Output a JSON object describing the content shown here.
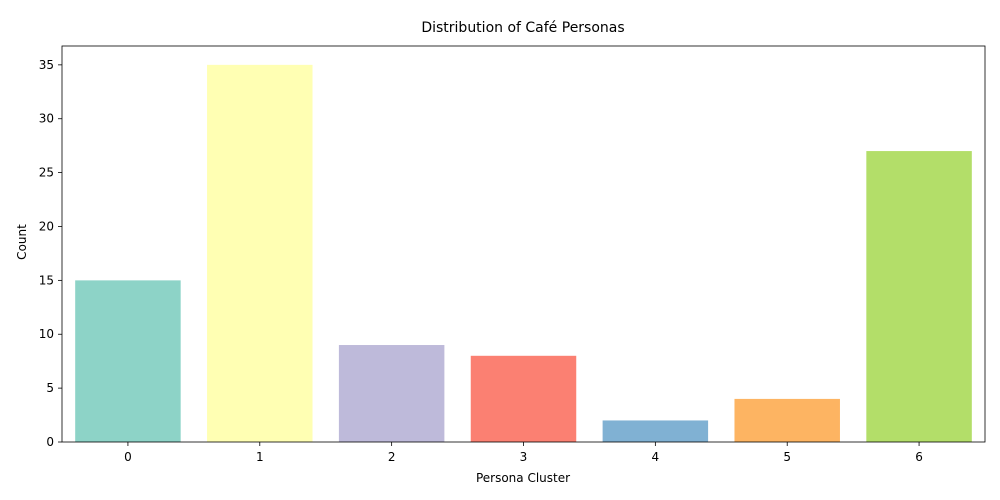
{
  "chart_data": {
    "type": "bar",
    "title": "Distribution of Café Personas",
    "xlabel": "Persona Cluster",
    "ylabel": "Count",
    "categories": [
      "0",
      "1",
      "2",
      "3",
      "4",
      "5",
      "6"
    ],
    "values": [
      15,
      35,
      9,
      8,
      2,
      4,
      27
    ],
    "colors": [
      "#8dd3c7",
      "#ffffb3",
      "#bebada",
      "#fb8072",
      "#80b1d3",
      "#fdb462",
      "#b3de69"
    ],
    "ylim": [
      0,
      36.75
    ],
    "yticks": [
      0,
      5,
      10,
      15,
      20,
      25,
      30,
      35
    ],
    "grid": false,
    "legend": "none"
  }
}
